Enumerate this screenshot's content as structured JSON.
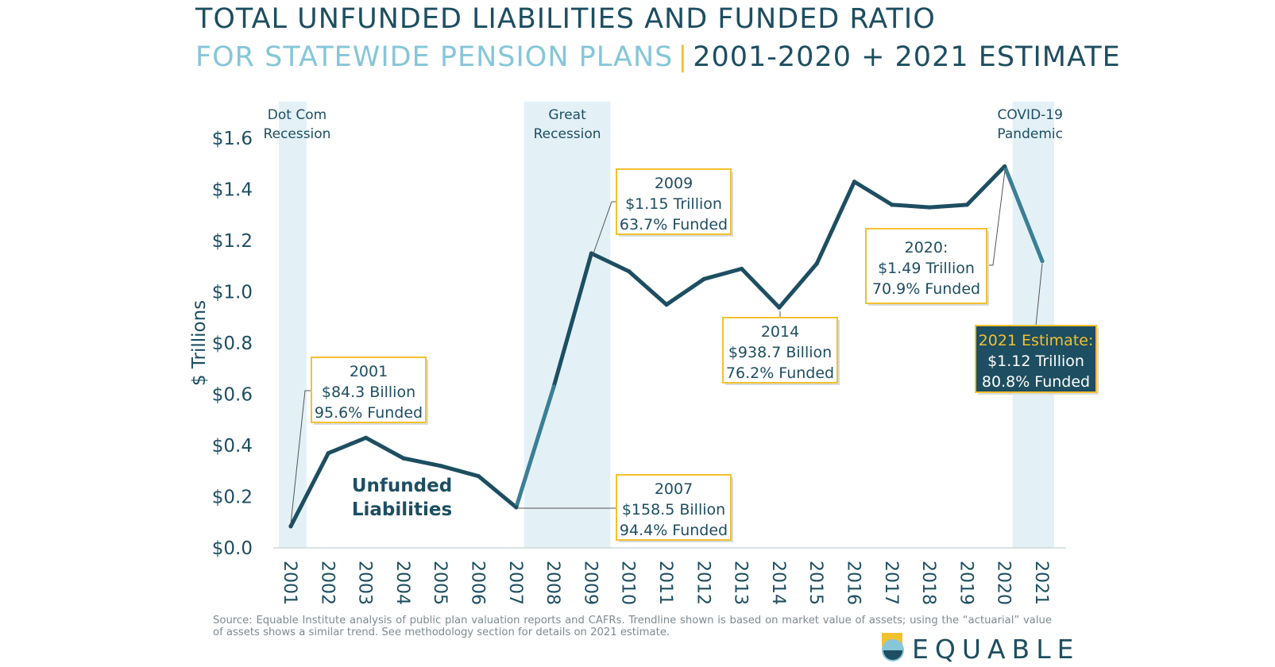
{
  "title_line1": "TOTAL UNFUNDED LIABILITIES AND FUNDED RATIO",
  "title_line2_light": "FOR STATEWIDE PENSION PLANS",
  "title_line2_sep": "|",
  "title_line2_dark": "2001-2020 + 2021 ESTIMATE",
  "footnote": "Source: Equable Institute analysis of public plan valuation reports and CAFRs. Trendline shown is based on market value of assets; using the “actuarial” value of assets shows a similar trend.  See methodology section for details on 2021 estimate.",
  "logo_text": "EQUABLE",
  "colors": {
    "line": "#1d4e61",
    "line_light": "#3b7f96",
    "band": "#e3f1f7",
    "callout_border": "#f2c130",
    "estimate_bg": "#1d4e61",
    "estimate_title": "#f2c130"
  },
  "chart_data": {
    "type": "line",
    "title": "TOTAL UNFUNDED LIABILITIES AND FUNDED RATIO",
    "ylabel": "$ Trillions",
    "xlabel": "",
    "ylim": [
      0,
      1.6
    ],
    "yticks": [
      0,
      0.2,
      0.4,
      0.6,
      0.8,
      1.0,
      1.2,
      1.4,
      1.6
    ],
    "ytick_labels": [
      "$0.0",
      "$0.2",
      "$0.4",
      "$0.6",
      "$0.8",
      "$1.0",
      "$1.2",
      "$1.4",
      "$1.6"
    ],
    "categories": [
      "2001",
      "2002",
      "2003",
      "2004",
      "2005",
      "2006",
      "2007",
      "2008",
      "2009",
      "2010",
      "2011",
      "2012",
      "2013",
      "2014",
      "2015",
      "2016",
      "2017",
      "2018",
      "2019",
      "2020",
      "2021"
    ],
    "series": [
      {
        "name": "Unfunded Liabilities",
        "label_line1": "Unfunded",
        "label_line2": "Liabilities",
        "values": [
          0.0843,
          0.37,
          0.43,
          0.35,
          0.32,
          0.28,
          0.1585,
          0.63,
          1.15,
          1.08,
          0.95,
          1.05,
          1.09,
          0.9387,
          1.11,
          1.43,
          1.34,
          1.33,
          1.34,
          1.49,
          1.12
        ]
      }
    ],
    "shaded_periods": [
      {
        "label_line1": "Dot Com",
        "label_line2": "Recession",
        "start": "2001",
        "end": "2001"
      },
      {
        "label_line1": "Great",
        "label_line2": "Recession",
        "start": "2007",
        "end": "2009"
      },
      {
        "label_line1": "COVID-19",
        "label_line2": "Pandemic",
        "start": "2020",
        "end": "2021"
      }
    ],
    "annotations": [
      {
        "year": "2001",
        "line1": "2001",
        "line2": "$84.3 Billion",
        "line3": "95.6% Funded"
      },
      {
        "year": "2007",
        "line1": "2007",
        "line2": "$158.5 Billion",
        "line3": "94.4% Funded"
      },
      {
        "year": "2009",
        "line1": "2009",
        "line2": "$1.15 Trillion",
        "line3": "63.7% Funded"
      },
      {
        "year": "2014",
        "line1": "2014",
        "line2": "$938.7 Billion",
        "line3": "76.2% Funded"
      },
      {
        "year": "2020",
        "line1": "2020:",
        "line2": "$1.49 Trillion",
        "line3": "70.9% Funded"
      },
      {
        "year": "2021",
        "line1": "2021 Estimate:",
        "line2": "$1.12 Trillion",
        "line3": "80.8% Funded"
      }
    ]
  }
}
